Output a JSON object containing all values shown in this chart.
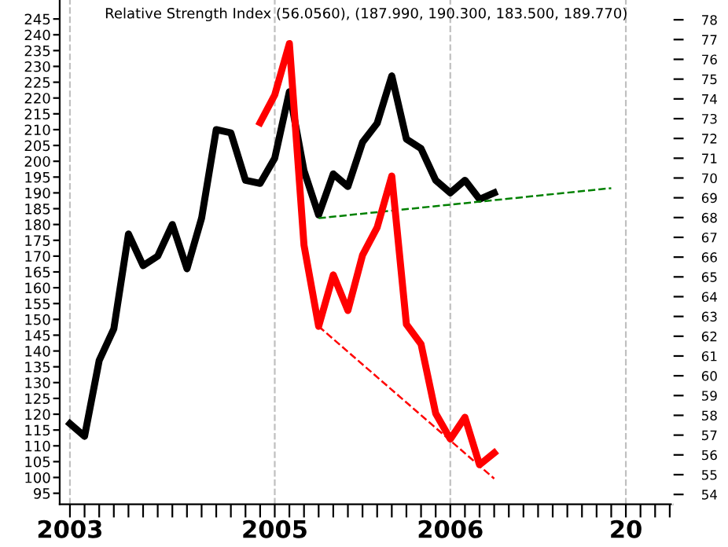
{
  "chart_data": {
    "type": "line",
    "title": "Relative Strength Index (56.0560), (187.990, 190.300, 183.500, 189.770)",
    "categories": [
      "2003",
      null,
      null,
      null,
      null,
      null,
      null,
      null,
      null,
      null,
      null,
      null,
      null,
      null,
      "2005",
      null,
      null,
      null,
      null,
      null,
      null,
      null,
      null,
      null,
      null,
      null,
      "2006",
      null,
      null,
      null,
      null,
      null,
      null,
      null,
      null,
      null,
      null,
      null,
      "20",
      null,
      null,
      null
    ],
    "ylim": [
      91.5,
      251
    ],
    "yticks": [
      95,
      100,
      105,
      110,
      115,
      120,
      125,
      130,
      135,
      140,
      145,
      150,
      155,
      160,
      165,
      170,
      175,
      180,
      185,
      190,
      195,
      200,
      205,
      210,
      215,
      220,
      225,
      230,
      235,
      240,
      245
    ],
    "y2lim": [
      53.5,
      79
    ],
    "y2ticks": [
      54,
      55,
      56,
      57,
      58,
      59,
      60,
      61,
      62,
      63,
      64,
      65,
      66,
      67,
      68,
      69,
      70,
      71,
      72,
      73,
      74,
      75,
      76,
      77,
      78
    ],
    "ref_lines": [
      {
        "axis": "x",
        "value": "2003",
        "label": null,
        "color": "#c0c0c0",
        "line_style": "dashed"
      },
      {
        "axis": "x",
        "value": "2005",
        "label": null,
        "color": "#c0c0c0",
        "line_style": "dashed"
      },
      {
        "axis": "x",
        "value": "2006",
        "label": null,
        "color": "#c0c0c0",
        "line_style": "dashed"
      },
      {
        "axis": "x",
        "value": "20",
        "label": null,
        "color": "#c0c0c0",
        "line_style": "dashed"
      }
    ],
    "series": [
      {
        "color": "#000000",
        "line_style": "solid",
        "values": [
          117,
          113,
          137,
          147,
          177,
          167,
          170,
          180,
          166,
          182,
          210,
          209,
          194,
          193,
          201,
          222,
          197,
          183,
          196,
          192,
          206,
          212,
          227,
          207,
          204,
          194,
          190,
          194,
          188,
          190,
          null,
          null,
          null,
          null,
          null,
          null,
          null,
          null,
          null,
          null,
          null,
          null
        ]
      },
      {
        "color": "#ff0000",
        "axis": "y2",
        "line_style": "solid",
        "values": [
          null,
          null,
          null,
          null,
          null,
          null,
          null,
          null,
          null,
          null,
          null,
          null,
          null,
          72.8,
          74.2,
          76.8,
          66.6,
          62.5,
          65.1,
          63.3,
          66.1,
          67.5,
          70.1,
          62.6,
          61.6,
          58.1,
          56.8,
          57.9,
          55.5,
          56.1,
          null,
          null,
          null,
          null,
          null,
          null,
          null,
          null,
          null,
          null,
          null,
          null
        ]
      },
      {
        "color": "#008000",
        "line_style": "dashed",
        "values": [
          null,
          null,
          null,
          null,
          null,
          null,
          null,
          null,
          null,
          null,
          null,
          null,
          null,
          null,
          null,
          null,
          null,
          182,
          null,
          null,
          null,
          null,
          null,
          null,
          null,
          null,
          null,
          null,
          null,
          null,
          null,
          null,
          null,
          null,
          null,
          null,
          null,
          191.5,
          null,
          null,
          null,
          null
        ]
      },
      {
        "color": "#ff0000",
        "axis": "y2",
        "line_style": "dashed",
        "values": [
          null,
          null,
          null,
          null,
          null,
          null,
          null,
          null,
          null,
          null,
          null,
          null,
          null,
          null,
          null,
          null,
          null,
          62.5,
          null,
          null,
          null,
          null,
          null,
          null,
          null,
          null,
          null,
          null,
          null,
          54.8,
          null,
          null,
          null,
          null,
          null,
          null,
          null,
          null,
          null,
          null,
          null,
          null
        ]
      }
    ]
  }
}
